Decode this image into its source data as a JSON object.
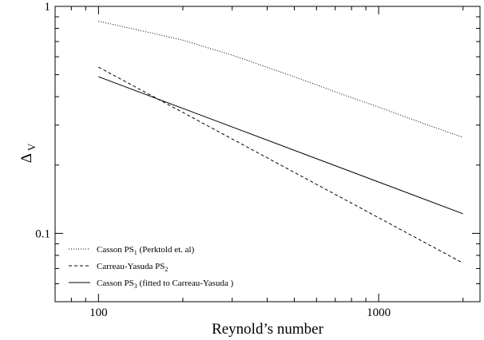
{
  "chart_data": {
    "type": "line",
    "xlabel": "Reynold’s number",
    "ylabel": "Δ",
    "ylabel_sub": "V",
    "xscale": "log",
    "yscale": "log",
    "xlim": [
      70,
      2300
    ],
    "ylim": [
      0.05,
      1
    ],
    "x_ticks": [
      {
        "value": 100,
        "label": "100"
      },
      {
        "value": 1000,
        "label": "1000"
      }
    ],
    "y_ticks": [
      {
        "value": 0.1,
        "label": "0.1"
      },
      {
        "value": 1,
        "label": "1"
      }
    ],
    "grid": false,
    "legend_position": "bottom-left",
    "series": [
      {
        "name": "Casson PS",
        "name_sub": "1",
        "name_suffix": " (Perktold et. al)",
        "line_style": "dotted",
        "x": [
          100,
          150,
          200,
          300,
          500,
          700,
          1000,
          1500,
          2000
        ],
        "y": [
          0.86,
          0.77,
          0.71,
          0.61,
          0.49,
          0.42,
          0.36,
          0.3,
          0.265
        ]
      },
      {
        "name": "Carreau-Yasuda PS",
        "name_sub": "2",
        "name_suffix": "",
        "line_style": "dashed",
        "x": [
          100,
          2000
        ],
        "y": [
          0.54,
          0.074
        ]
      },
      {
        "name": "Casson PS",
        "name_sub": "3",
        "name_suffix": "  (fitted to Carreau-Yasuda )",
        "line_style": "solid",
        "x": [
          100,
          2000
        ],
        "y": [
          0.49,
          0.122
        ]
      }
    ]
  }
}
